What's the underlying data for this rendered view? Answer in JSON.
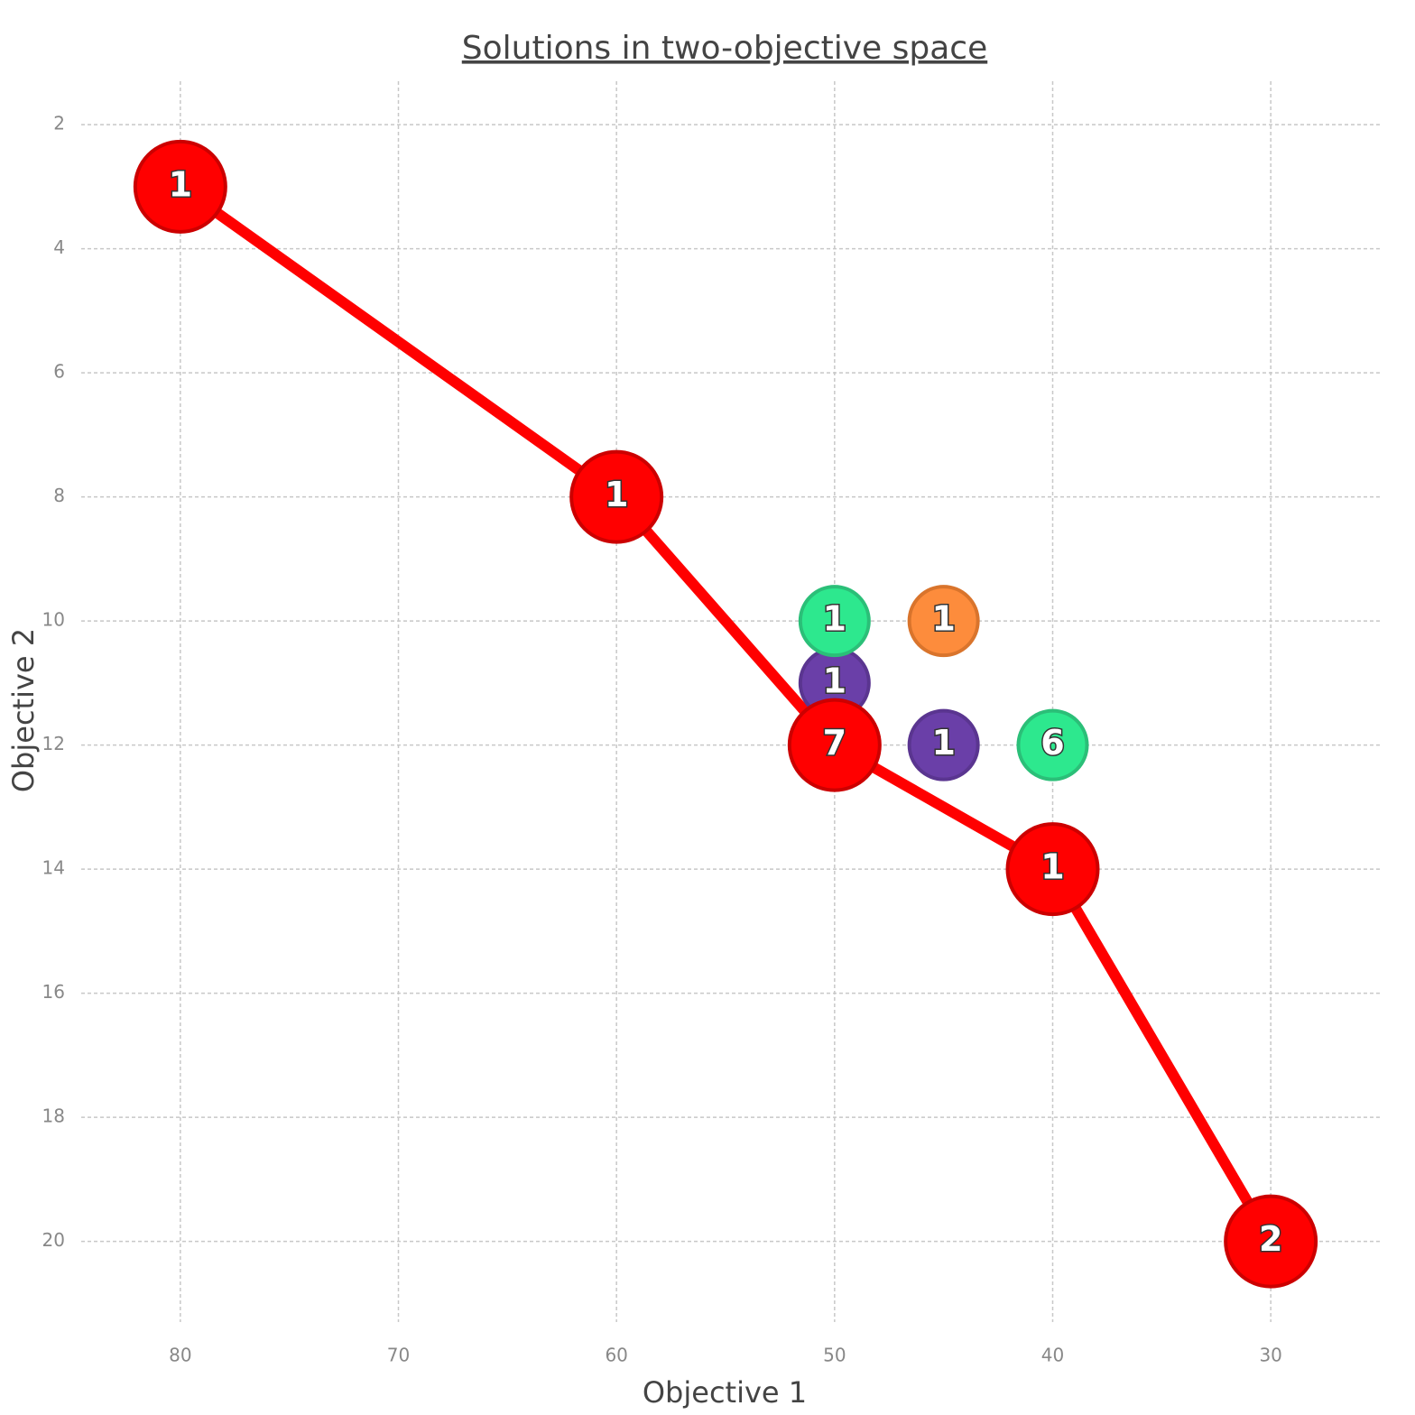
{
  "chart_data": {
    "type": "scatter",
    "title": "Solutions in two-objective space",
    "x_label": "Objective 1",
    "y_label": "Objective 2",
    "xlim": [
      85,
      25
    ],
    "ylim": [
      21.3,
      1.3
    ],
    "xticks": [
      80,
      70,
      60,
      50,
      40,
      30
    ],
    "yticks": [
      2,
      4,
      6,
      8,
      10,
      12,
      14,
      16,
      18,
      20
    ],
    "grid": true,
    "series": [
      {
        "color": "#ff0000",
        "edge_color": "#cc0000",
        "line": true,
        "x": [
          80,
          60,
          50,
          40,
          30
        ],
        "y": [
          3,
          8,
          12,
          14,
          20
        ],
        "counts": [
          1,
          1,
          7,
          1,
          2
        ]
      },
      {
        "color": "#2de88e",
        "edge_color": "#2bbf78",
        "line": false,
        "x": [
          50,
          40
        ],
        "y": [
          10,
          12
        ],
        "counts": [
          1,
          6
        ]
      },
      {
        "color": "#fd8c3c",
        "edge_color": "#d9742c",
        "line": false,
        "x": [
          45
        ],
        "y": [
          10
        ],
        "counts": [
          1
        ]
      },
      {
        "color": "#6a3fa8",
        "edge_color": "#5a3590",
        "line": false,
        "x": [
          50,
          45
        ],
        "y": [
          11,
          12
        ],
        "counts": [
          1,
          1
        ]
      }
    ]
  }
}
